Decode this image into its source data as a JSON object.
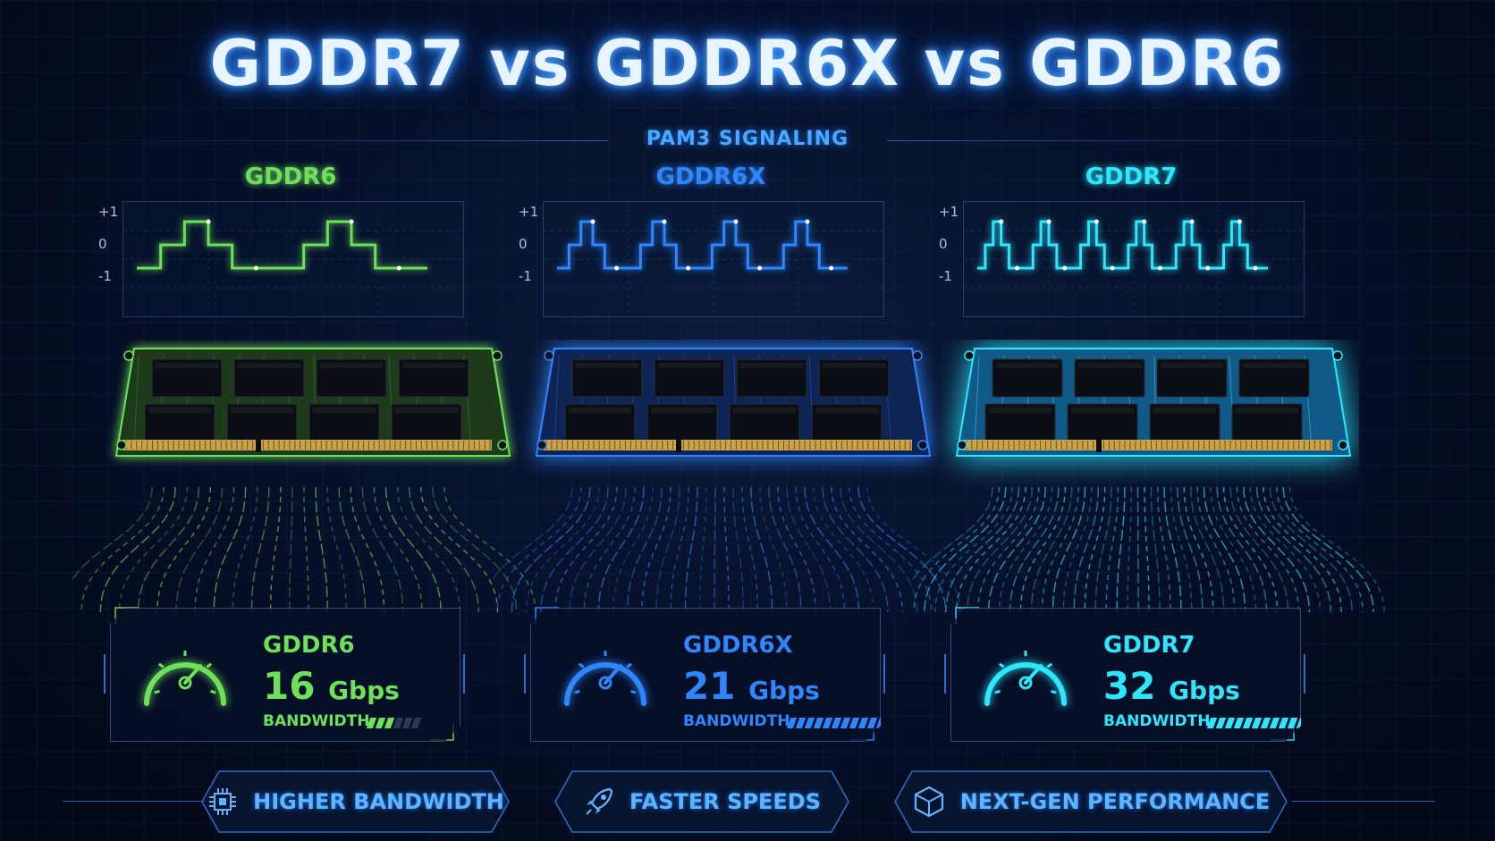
{
  "title": "GDDR7 vs GDDR6X vs GDDR6",
  "subtitle": "PAM3 SIGNALING",
  "scope_axis": [
    "+1",
    "0",
    "-1"
  ],
  "columns": [
    {
      "name": "GDDR6",
      "color": "#6ee05a",
      "speed": "16",
      "unit": "Gbps",
      "bandwidth_label": "BANDWIDTH",
      "bandwidth_level": 0.5
    },
    {
      "name": "GDDR6X",
      "color": "#2f86ff",
      "speed": "21",
      "unit": "Gbps",
      "bandwidth_label": "BANDWIDTH",
      "bandwidth_level": 0.75
    },
    {
      "name": "GDDR7",
      "color": "#2fe6ff",
      "speed": "32",
      "unit": "Gbps",
      "bandwidth_label": "BANDWIDTH",
      "bandwidth_level": 1.0
    }
  ],
  "features": [
    {
      "label": "HIGHER BANDWIDTH",
      "icon": "chip-icon"
    },
    {
      "label": "FASTER SPEEDS",
      "icon": "rocket-icon"
    },
    {
      "label": "NEXT-GEN PERFORMANCE",
      "icon": "cube-icon"
    }
  ]
}
